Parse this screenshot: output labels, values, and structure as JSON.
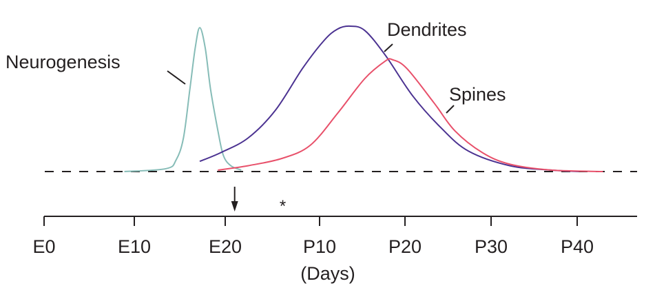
{
  "chart_data": {
    "type": "line",
    "title": "",
    "xlabel": "(Days)",
    "ylabel": "",
    "xlim": [
      0,
      66
    ],
    "ylim": [
      0,
      1.2
    ],
    "grid": false,
    "legend": "none (inline curve labels)",
    "x_ticks": [
      {
        "value": 0,
        "label": "E0"
      },
      {
        "value": 10,
        "label": "E10"
      },
      {
        "value": 20,
        "label": "E20"
      },
      {
        "value": 30,
        "label": "P10"
      },
      {
        "value": 40,
        "label": "P20"
      },
      {
        "value": 50,
        "label": "P30"
      },
      {
        "value": 60,
        "label": "P40"
      }
    ],
    "baseline": {
      "value": 0,
      "style": "dashed",
      "color": "#231f20"
    },
    "series": [
      {
        "name": "Neurogenesis",
        "color": "#86bcb7",
        "x": [
          8.9,
          13.5,
          14.6,
          15.4,
          16.1,
          16.7,
          17.2,
          17.8,
          18.4,
          19.2,
          19.8,
          20.6,
          21.7
        ],
        "y": [
          0,
          0.02,
          0.08,
          0.23,
          0.56,
          0.85,
          0.99,
          0.85,
          0.56,
          0.28,
          0.11,
          0.04,
          0.01
        ]
      },
      {
        "name": "Dendrites",
        "color": "#4b3291",
        "x": [
          17.2,
          19.5,
          22.4,
          25.3,
          28.2,
          30.5,
          32.1,
          33.6,
          35.3,
          37.7,
          40.9,
          44.2,
          47.4,
          52.2,
          57.0,
          60.2
        ],
        "y": [
          0.07,
          0.13,
          0.23,
          0.42,
          0.71,
          0.9,
          0.98,
          1.0,
          0.97,
          0.8,
          0.52,
          0.3,
          0.14,
          0.04,
          0.01,
          0
        ]
      },
      {
        "name": "Spines",
        "color": "#e8506a",
        "x": [
          19.2,
          22.4,
          26.0,
          29.0,
          32.1,
          35.3,
          37.7,
          38.5,
          40.2,
          43.4,
          45.8,
          49.0,
          52.2,
          57.0,
          63.0
        ],
        "y": [
          0.01,
          0.04,
          0.09,
          0.18,
          0.4,
          0.64,
          0.76,
          0.77,
          0.71,
          0.47,
          0.28,
          0.13,
          0.05,
          0.01,
          0
        ]
      }
    ],
    "annotations": [
      {
        "type": "arrow",
        "direction": "down",
        "x": 21,
        "text": ""
      },
      {
        "type": "text",
        "x": 26.1,
        "text": "*"
      }
    ]
  },
  "labels": {
    "neurogenesis": "Neurogenesis",
    "dendrites": "Dendrites",
    "spines": "Spines",
    "xlabel": "(Days)",
    "asterisk": "*"
  }
}
